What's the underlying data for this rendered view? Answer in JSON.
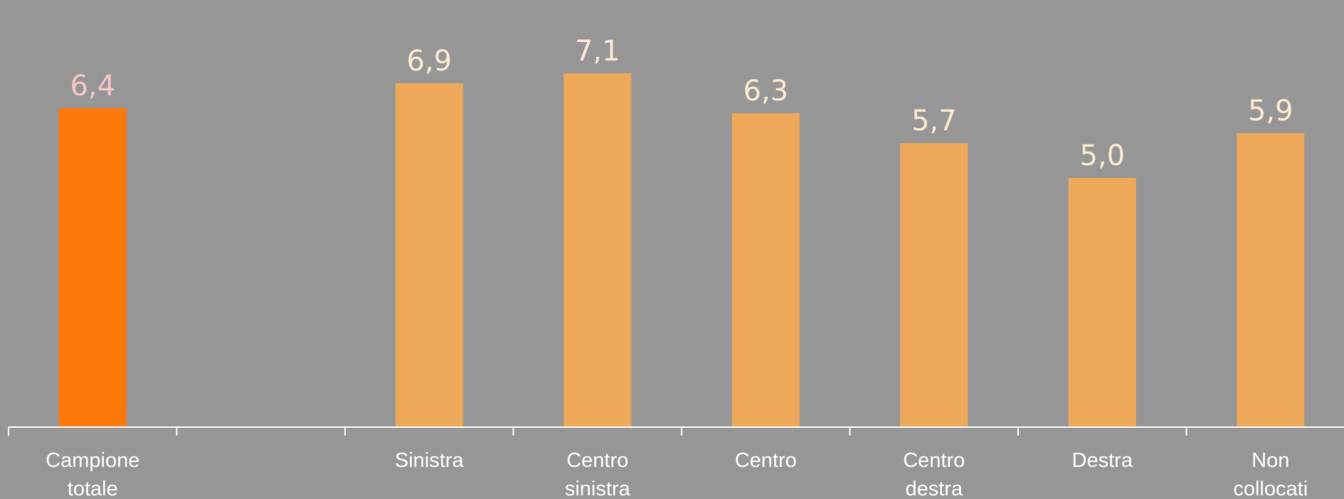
{
  "chart_data": {
    "type": "bar",
    "categories": [
      [
        "Campione",
        "totale"
      ],
      [],
      [
        "Sinistra"
      ],
      [
        "Centro",
        "sinistra"
      ],
      [
        "Centro"
      ],
      [
        "Centro",
        "destra"
      ],
      [
        "Destra"
      ],
      [
        "Non",
        "collocati"
      ]
    ],
    "values": [
      6.4,
      null,
      6.9,
      7.1,
      6.3,
      5.7,
      5.0,
      5.9
    ],
    "value_labels": [
      "6,4",
      "",
      "6,9",
      "7,1",
      "6,3",
      "5,7",
      "5,0",
      "5,9"
    ],
    "ylim": [
      0,
      8
    ],
    "grid": false,
    "colors": {
      "background": "#969696",
      "highlight_bar": "#FF780A",
      "bar": "#EDA859",
      "highlight_label": "#F8C6C4",
      "value_label": "#FDEBD0",
      "axis": "#FFFFFF",
      "category_label": "#FFFFFF"
    },
    "highlight_index": 0
  }
}
